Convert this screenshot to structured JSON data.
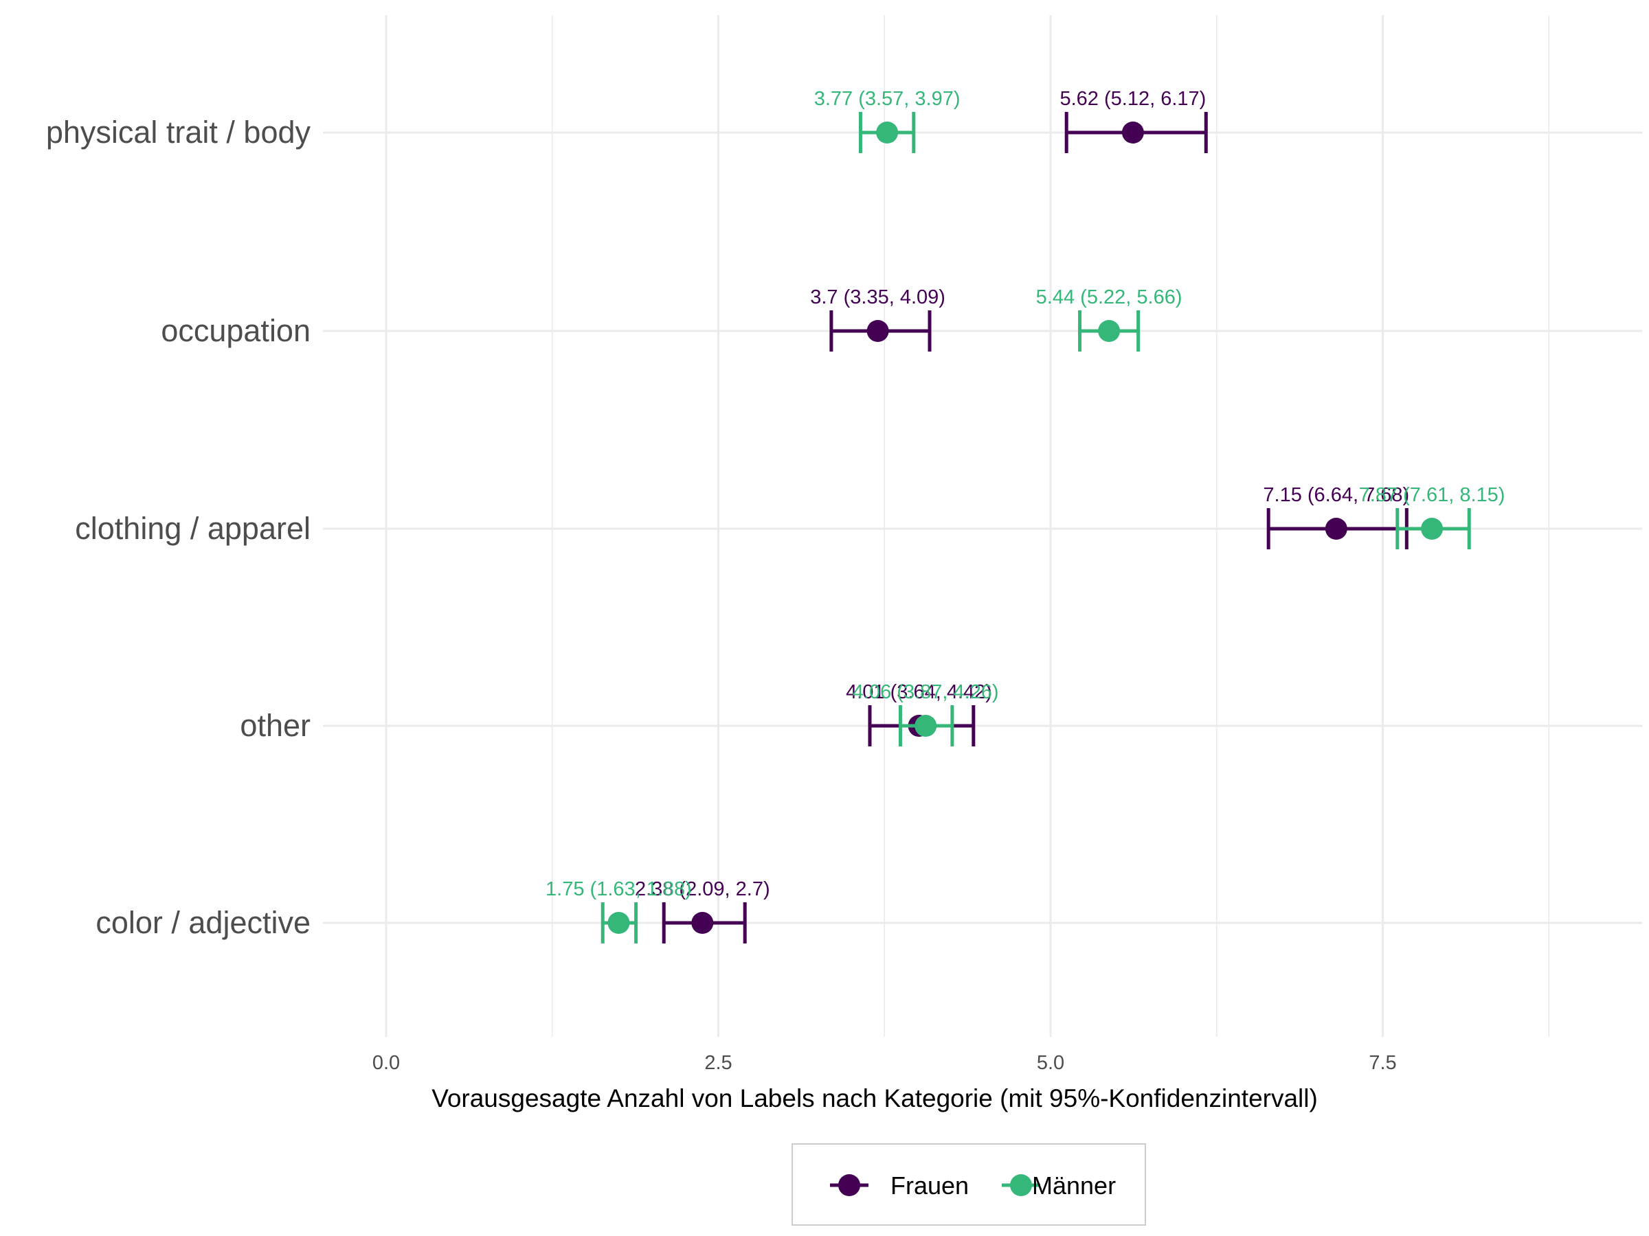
{
  "chart_data": {
    "type": "scatter",
    "xlabel": "Vorausgesagte Anzahl von Labels nach Kategorie (mit 95%-Konfidenzintervall)",
    "ylabel": "",
    "xlim": [
      -0.1,
      9.3
    ],
    "x_ticks": [
      0.0,
      2.5,
      5.0,
      7.5
    ],
    "x_tick_labels": [
      "0.0",
      "2.5",
      "5.0",
      "7.5"
    ],
    "x_minor_ticks": [
      1.25,
      3.75,
      6.25,
      8.75
    ],
    "grid": true,
    "legend_position": "bottom",
    "categories": [
      "physical trait / body",
      "occupation",
      "clothing / apparel",
      "other",
      "color / adjective"
    ],
    "series": [
      {
        "name": "Frauen",
        "color": "#440154",
        "label_color": "#440154",
        "estimates": [
          5.62,
          3.7,
          7.15,
          4.01,
          2.38
        ],
        "lower": [
          5.12,
          3.35,
          6.64,
          3.64,
          2.09
        ],
        "upper": [
          6.17,
          4.09,
          7.68,
          4.42,
          2.7
        ],
        "labels": [
          "5.62 (5.12, 6.17)",
          "3.7 (3.35, 4.09)",
          "7.15 (6.64, 7.68)",
          "4.01 (3.64, 4.42)",
          "2.38 (2.09, 2.7)"
        ]
      },
      {
        "name": "Männer",
        "color": "#35b779",
        "label_color": "#35b779",
        "estimates": [
          3.77,
          5.44,
          7.87,
          4.06,
          1.75
        ],
        "lower": [
          3.57,
          5.22,
          7.61,
          3.87,
          1.63
        ],
        "upper": [
          3.97,
          5.66,
          8.15,
          4.26,
          1.88
        ],
        "labels": [
          "3.77 (3.57, 3.97)",
          "5.44 (5.22, 5.66)",
          "7.87 (7.61, 8.15)",
          "4.06 (3.87, 4.26)",
          "1.75 (1.63, 1.88)"
        ]
      }
    ]
  },
  "legend": {
    "items": [
      {
        "label": "Frauen",
        "color": "#440154"
      },
      {
        "label": "Männer",
        "color": "#35b779"
      }
    ]
  }
}
